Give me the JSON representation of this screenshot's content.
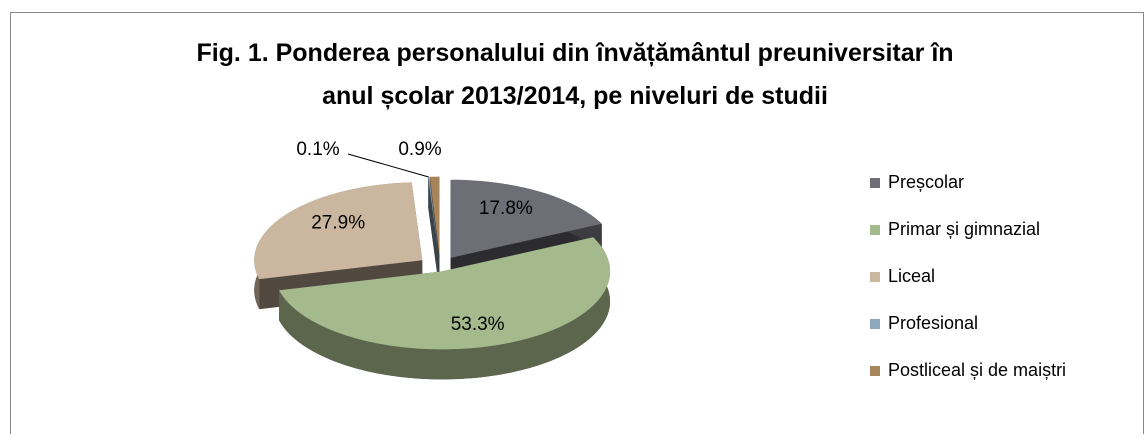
{
  "chart_data": {
    "type": "pie",
    "title": "Fig. 1. Ponderea personalului din învățământul preuniversitar în anul școlar 2013/2014, pe niveluri de studii",
    "categories": [
      "Preșcolar",
      "Primar și gimnazial",
      "Liceal",
      "Profesional",
      "Postliceal și de maiștri"
    ],
    "values": [
      17.8,
      53.3,
      27.9,
      0.1,
      0.9
    ],
    "value_labels": [
      "17.8%",
      "53.3%",
      "27.9%",
      "0.1%",
      "0.9%"
    ],
    "colors": [
      "#6e6f76",
      "#a5ba8c",
      "#cbb7a0",
      "#8ea7ba",
      "#a8845c"
    ],
    "legend": "right"
  }
}
